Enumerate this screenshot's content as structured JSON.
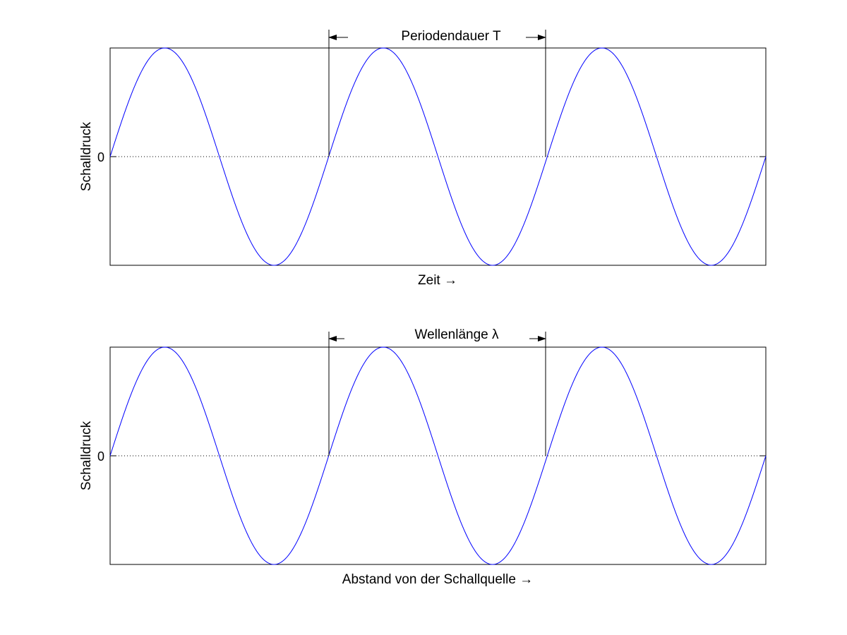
{
  "chart_data": [
    {
      "type": "line",
      "title": "",
      "xlabel": "Zeit →",
      "ylabel": "Schalldruck",
      "yticks": [
        "0"
      ],
      "xlim": [
        0,
        3
      ],
      "ylim": [
        -1,
        1
      ],
      "grid": false,
      "zero_line": "dotted",
      "series": [
        {
          "color": "#0000ff",
          "function": "sin(2πx)",
          "x_range": [
            0,
            3
          ],
          "amplitude": 1,
          "periods": 3
        }
      ],
      "annotation": {
        "label": "Periodendauer T",
        "from_x": 1,
        "to_x": 2,
        "style": "dimension-arrows"
      }
    },
    {
      "type": "line",
      "title": "",
      "xlabel": "Abstand von der Schallquelle →",
      "ylabel": "Schalldruck",
      "yticks": [
        "0"
      ],
      "xlim": [
        0,
        3
      ],
      "ylim": [
        -1,
        1
      ],
      "grid": false,
      "zero_line": "dotted",
      "series": [
        {
          "color": "#0000ff",
          "function": "sin(2πx)",
          "x_range": [
            0,
            3
          ],
          "amplitude": 1,
          "periods": 3
        }
      ],
      "annotation": {
        "label": "Wellenlänge λ",
        "from_x": 1,
        "to_x": 2,
        "style": "dimension-arrows"
      }
    }
  ]
}
